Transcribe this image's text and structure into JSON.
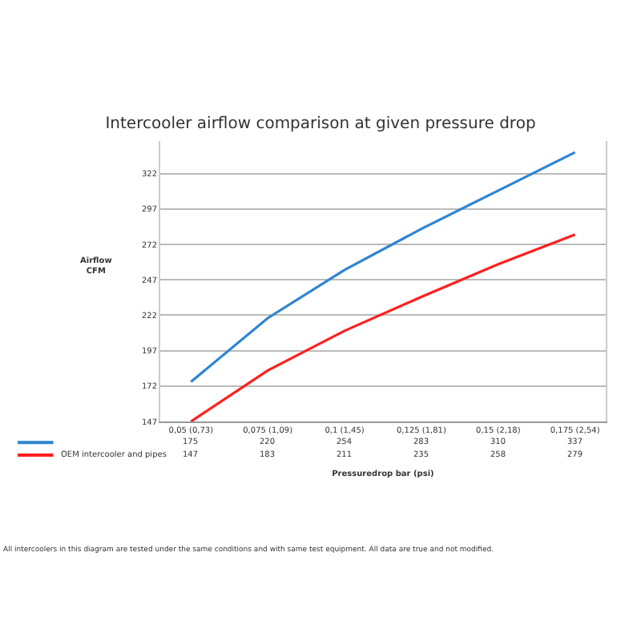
{
  "chart_data": {
    "type": "line",
    "title": "Intercooler airflow comparison at given pressure drop",
    "xlabel": "Pressuredrop bar (psi)",
    "ylabel": "Airflow\nCFM",
    "categories": [
      "0,05 (0,73)",
      "0,075 (1,09)",
      "0,1 (1,45)",
      "0,125 (1,81)",
      "0,15 (2,18)",
      "0,175 (2,54)"
    ],
    "series": [
      {
        "color": "#2f84d0",
        "values": [
          175,
          220,
          254,
          283,
          310,
          337
        ]
      },
      {
        "name": "OEM intercooler and pipes",
        "color": "#ff1f1f",
        "values": [
          147,
          183,
          211,
          235,
          258,
          279
        ]
      }
    ],
    "ylim": [
      147,
      345
    ],
    "yticks": [
      147,
      172,
      197,
      222,
      247,
      272,
      297,
      322
    ],
    "grid": "y",
    "legend": "bottom left",
    "marker": "none",
    "line_style": "solid",
    "data_labels": true,
    "annotations": [
      "All intercoolers in this diagram are tested under the same conditions and with same test equipment. All data are true and not modified."
    ]
  }
}
